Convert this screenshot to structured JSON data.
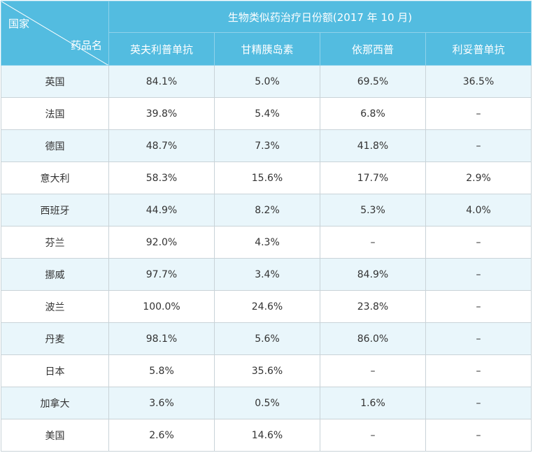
{
  "chart_data": {
    "type": "table",
    "title": "生物类似药治疗日份额(2017 年 10 月)",
    "corner": {
      "row_label": "国家",
      "col_label": "药品名"
    },
    "columns": [
      "英夫利普单抗",
      "甘精胰岛素",
      "依那西普",
      "利妥普单抗"
    ],
    "rows": [
      {
        "country": "英国",
        "values": [
          "84.1%",
          "5.0%",
          "69.5%",
          "36.5%"
        ]
      },
      {
        "country": "法国",
        "values": [
          "39.8%",
          "5.4%",
          "6.8%",
          "–"
        ]
      },
      {
        "country": "德国",
        "values": [
          "48.7%",
          "7.3%",
          "41.8%",
          "–"
        ]
      },
      {
        "country": "意大利",
        "values": [
          "58.3%",
          "15.6%",
          "17.7%",
          "2.9%"
        ]
      },
      {
        "country": "西班牙",
        "values": [
          "44.9%",
          "8.2%",
          "5.3%",
          "4.0%"
        ]
      },
      {
        "country": "芬兰",
        "values": [
          "92.0%",
          "4.3%",
          "–",
          "–"
        ]
      },
      {
        "country": "挪威",
        "values": [
          "97.7%",
          "3.4%",
          "84.9%",
          "–"
        ]
      },
      {
        "country": "波兰",
        "values": [
          "100.0%",
          "24.6%",
          "23.8%",
          "–"
        ]
      },
      {
        "country": "丹麦",
        "values": [
          "98.1%",
          "5.6%",
          "86.0%",
          "–"
        ]
      },
      {
        "country": "日本",
        "values": [
          "5.8%",
          "35.6%",
          "–",
          "–"
        ]
      },
      {
        "country": "加拿大",
        "values": [
          "3.6%",
          "0.5%",
          "1.6%",
          "–"
        ]
      },
      {
        "country": "美国",
        "values": [
          "2.6%",
          "14.6%",
          "–",
          "–"
        ]
      }
    ]
  },
  "colors": {
    "header_bg": "#53bce0",
    "header_text": "#ffffff",
    "stripe_bg": "#e9f6fb",
    "plain_bg": "#ffffff",
    "grid_line": "#c9d3d8",
    "body_text": "#333333"
  }
}
